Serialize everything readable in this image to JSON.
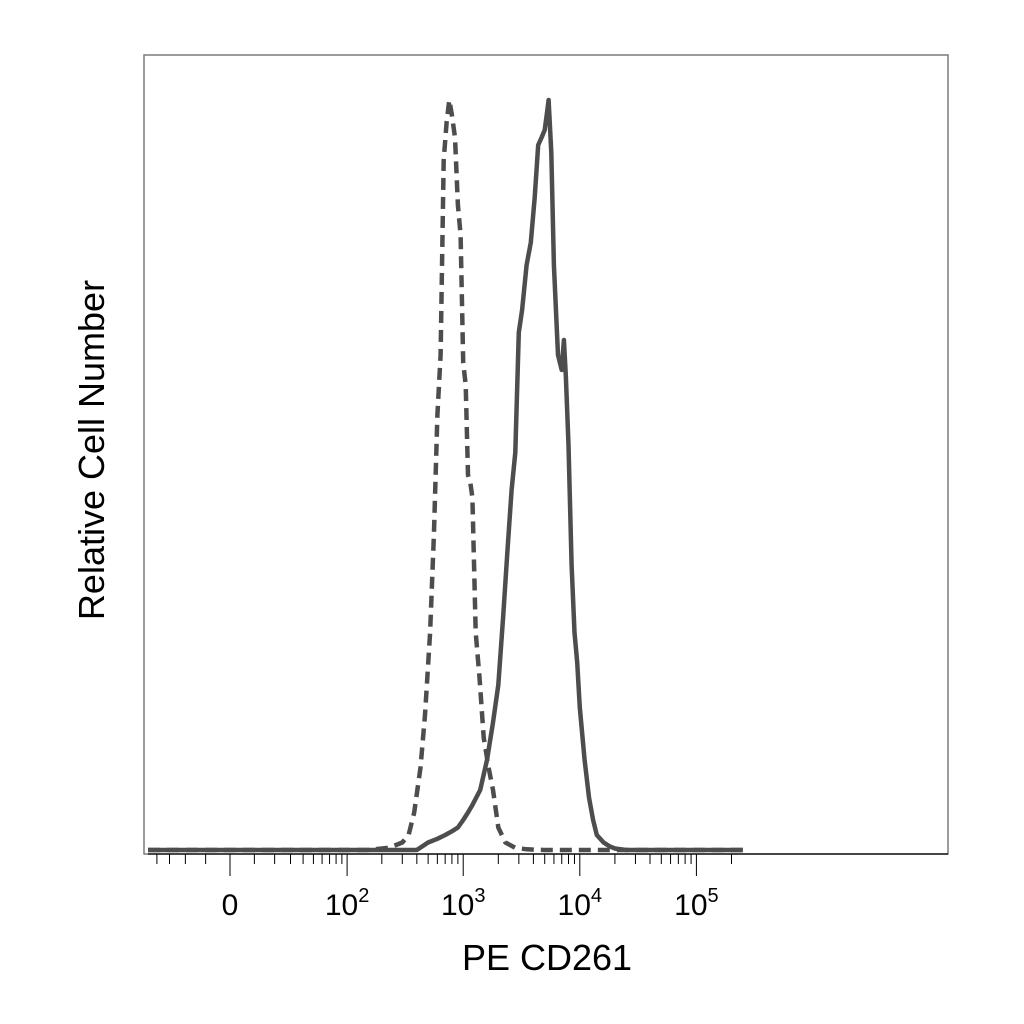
{
  "chart_data": {
    "type": "line",
    "title": "",
    "xlabel": "PE  CD261",
    "ylabel": "Relative Cell Number",
    "x_scale": "biexponential",
    "xlim": [
      -80,
      250000
    ],
    "ylim": [
      0,
      1
    ],
    "y_ticks_labeled": false,
    "grid": false,
    "legend": "none",
    "x_tick_labels": [
      {
        "value": 0,
        "base": "0",
        "exp": ""
      },
      {
        "value": 100,
        "base": "10",
        "exp": "2"
      },
      {
        "value": 1000,
        "base": "10",
        "exp": "3"
      },
      {
        "value": 10000,
        "base": "10",
        "exp": "4"
      },
      {
        "value": 100000,
        "base": "10",
        "exp": "5"
      }
    ],
    "series": [
      {
        "style": "dashed",
        "color": "#4d4d4d",
        "x": [
          -80,
          150,
          230,
          300,
          340,
          380,
          430,
          470,
          520,
          560,
          600,
          640,
          680,
          720,
          760,
          800,
          850,
          900,
          950,
          1000,
          1050,
          1100,
          1150,
          1200,
          1280,
          1380,
          1500,
          1650,
          1800,
          2000,
          2300,
          2800,
          3500,
          5000,
          10000,
          250000
        ],
        "y": [
          0,
          0,
          0.003,
          0.01,
          0.02,
          0.05,
          0.11,
          0.18,
          0.29,
          0.42,
          0.58,
          0.66,
          0.92,
          0.97,
          1.0,
          0.98,
          0.95,
          0.86,
          0.82,
          0.65,
          0.62,
          0.5,
          0.49,
          0.47,
          0.29,
          0.23,
          0.15,
          0.11,
          0.08,
          0.03,
          0.01,
          0.003,
          0.001,
          0,
          0,
          0
        ]
      },
      {
        "style": "solid",
        "color": "#4d4d4d",
        "x": [
          -80,
          400,
          500,
          600,
          700,
          800,
          900,
          1000,
          1100,
          1200,
          1400,
          1600,
          1800,
          2000,
          2200,
          2400,
          2600,
          2800,
          3000,
          3200,
          3500,
          3800,
          4100,
          4400,
          4700,
          5000,
          5200,
          5400,
          5700,
          6000,
          6500,
          7000,
          7300,
          7600,
          8000,
          8500,
          9000,
          9500,
          10000,
          11000,
          12000,
          13000,
          14000,
          16000,
          18000,
          20000,
          25000,
          30000,
          250000
        ],
        "y": [
          0,
          0,
          0.01,
          0.015,
          0.02,
          0.025,
          0.03,
          0.04,
          0.05,
          0.06,
          0.08,
          0.12,
          0.17,
          0.22,
          0.31,
          0.4,
          0.48,
          0.53,
          0.69,
          0.72,
          0.78,
          0.81,
          0.87,
          0.94,
          0.95,
          0.96,
          0.98,
          1.0,
          0.93,
          0.78,
          0.66,
          0.64,
          0.68,
          0.63,
          0.54,
          0.38,
          0.29,
          0.25,
          0.19,
          0.12,
          0.07,
          0.04,
          0.02,
          0.01,
          0.005,
          0.002,
          0,
          0,
          0
        ]
      }
    ]
  }
}
